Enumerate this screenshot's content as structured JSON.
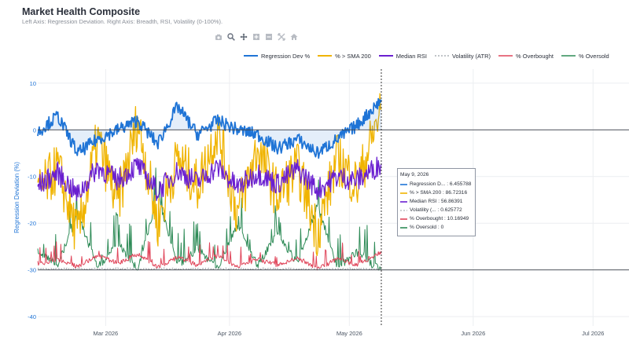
{
  "title": "Market Health Composite",
  "subtitle": "Left Axis: Regression Deviation. Right Axis: Breadth, RSI, Volatility (0-100%).",
  "toolbar": [
    {
      "icon": "camera-icon"
    },
    {
      "icon": "zoom-icon"
    },
    {
      "icon": "pan-icon"
    },
    {
      "icon": "zoom-in-icon"
    },
    {
      "icon": "zoom-out-icon"
    },
    {
      "icon": "autoscale-icon"
    },
    {
      "icon": "home-icon"
    }
  ],
  "legend": [
    {
      "label": "Regression Dev %",
      "color": "#1f74d6",
      "dash": ""
    },
    {
      "label": "% > SMA 200",
      "color": "#f0b400",
      "dash": ""
    },
    {
      "label": "Median RSI",
      "color": "#6a1fd0",
      "dash": ""
    },
    {
      "label": "Volatility (ATR)",
      "color": "#9aa0a6",
      "dash": "2,2"
    },
    {
      "label": "% Overbought",
      "color": "#e0455a",
      "dash": ""
    },
    {
      "label": "% Oversold",
      "color": "#2e8b57",
      "dash": ""
    }
  ],
  "tooltip": {
    "date": "May 9, 2026",
    "rows": [
      {
        "text": "Regression D... : 6.455788",
        "color": "#1f74d6",
        "dash": ""
      },
      {
        "text": "% > SMA 200 : 86.72316",
        "color": "#f0b400",
        "dash": ""
      },
      {
        "text": "Median RSI : 56.86391",
        "color": "#6a1fd0",
        "dash": ""
      },
      {
        "text": "Volatility (... : 0.625772",
        "color": "#9aa0a6",
        "dash": "2,2"
      },
      {
        "text": "% Overbought : 10.16949",
        "color": "#e0455a",
        "dash": ""
      },
      {
        "text": "% Oversold : 0",
        "color": "#2e8b57",
        "dash": ""
      }
    ]
  },
  "chart_data": {
    "type": "line",
    "title": "Market Health Composite",
    "ylabel": "Regression Deviation (%)",
    "ylim": [
      -42,
      13
    ],
    "y_ticks": [
      10,
      0,
      -10,
      -20,
      -30,
      -40
    ],
    "x_ticks": [
      "Mar 2026",
      "Apr 2026",
      "May 2026",
      "Jun 2026",
      "Jul 2026"
    ],
    "x_range": [
      "2026-02-12",
      "2026-07-10"
    ],
    "hover_date": "2026-05-09",
    "reference_lines": [
      0,
      -30
    ],
    "legend_position": "top",
    "grid": true,
    "series": [
      {
        "name": "Regression Dev %",
        "axis": "left",
        "unit": "%",
        "x": [
          "2026-02-12",
          "2026-02-17",
          "2026-02-22",
          "2026-02-27",
          "2026-03-04",
          "2026-03-09",
          "2026-03-14",
          "2026-03-19",
          "2026-03-24",
          "2026-03-29",
          "2026-04-03",
          "2026-04-08",
          "2026-04-13",
          "2026-04-18",
          "2026-04-23",
          "2026-04-28",
          "2026-05-03",
          "2026-05-09"
        ],
        "values": [
          -0.5,
          3,
          -5,
          -2,
          0,
          2,
          -3,
          5,
          -1,
          2,
          0,
          -1,
          -4,
          -2,
          -5,
          -2,
          1,
          6.46
        ]
      },
      {
        "name": "% > SMA 200",
        "axis": "right",
        "unit": "%",
        "x": [
          "2026-02-12",
          "2026-02-17",
          "2026-02-22",
          "2026-02-27",
          "2026-03-04",
          "2026-03-09",
          "2026-03-14",
          "2026-03-19",
          "2026-03-24",
          "2026-03-29",
          "2026-04-03",
          "2026-04-08",
          "2026-04-13",
          "2026-04-18",
          "2026-04-23",
          "2026-04-28",
          "2026-05-03",
          "2026-05-09"
        ],
        "values": [
          40,
          55,
          18,
          70,
          35,
          80,
          25,
          60,
          45,
          75,
          30,
          65,
          40,
          55,
          20,
          60,
          45,
          86.72
        ]
      },
      {
        "name": "Median RSI",
        "axis": "right",
        "unit": "%",
        "x": [
          "2026-02-12",
          "2026-02-17",
          "2026-02-22",
          "2026-02-27",
          "2026-03-04",
          "2026-03-09",
          "2026-03-14",
          "2026-03-19",
          "2026-03-24",
          "2026-03-29",
          "2026-04-03",
          "2026-04-08",
          "2026-04-13",
          "2026-04-18",
          "2026-04-23",
          "2026-04-28",
          "2026-05-03",
          "2026-05-09"
        ],
        "values": [
          45,
          52,
          40,
          55,
          48,
          56,
          42,
          53,
          47,
          55,
          44,
          52,
          46,
          54,
          43,
          50,
          48,
          56.86
        ]
      },
      {
        "name": "Volatility (ATR)",
        "axis": "right",
        "unit": "%",
        "x": [
          "2026-02-12",
          "2026-03-10",
          "2026-04-08",
          "2026-05-09"
        ],
        "values": [
          0.6,
          0.7,
          0.65,
          0.63
        ]
      },
      {
        "name": "% Overbought",
        "axis": "right",
        "unit": "%",
        "x": [
          "2026-02-12",
          "2026-02-17",
          "2026-02-22",
          "2026-02-27",
          "2026-03-04",
          "2026-03-09",
          "2026-03-14",
          "2026-03-19",
          "2026-03-24",
          "2026-03-29",
          "2026-04-03",
          "2026-04-08",
          "2026-04-13",
          "2026-04-18",
          "2026-04-23",
          "2026-04-28",
          "2026-05-03",
          "2026-05-09"
        ],
        "values": [
          3,
          6,
          2,
          8,
          4,
          9,
          2,
          7,
          3,
          8,
          2,
          6,
          3,
          7,
          1,
          6,
          3,
          10.17
        ]
      },
      {
        "name": "% Oversold",
        "axis": "right",
        "unit": "%",
        "x": [
          "2026-02-12",
          "2026-02-17",
          "2026-02-22",
          "2026-02-27",
          "2026-03-04",
          "2026-03-09",
          "2026-03-14",
          "2026-03-19",
          "2026-03-24",
          "2026-03-29",
          "2026-04-03",
          "2026-04-08",
          "2026-04-13",
          "2026-04-18",
          "2026-04-23",
          "2026-04-28",
          "2026-05-03",
          "2026-05-09"
        ],
        "values": [
          10,
          4,
          30,
          2,
          15,
          1,
          40,
          3,
          12,
          2,
          25,
          3,
          20,
          4,
          35,
          2,
          10,
          0
        ]
      }
    ]
  }
}
